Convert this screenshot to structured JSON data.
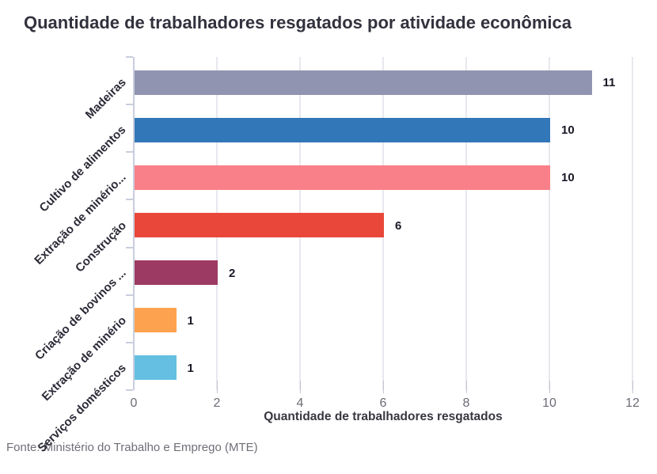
{
  "title": "Quantidade de trabalhadores resgatados por atividade econômica",
  "footer": "Fonte: Ministério do Trabalho e Emprego (MTE)",
  "chart_data": {
    "type": "bar",
    "orientation": "horizontal",
    "title": "Quantidade de trabalhadores resgatados por atividade econômica",
    "xlabel": "Quantidade de trabalhadores resgatados",
    "ylabel": "",
    "xlim": [
      0,
      12
    ],
    "xticks": [
      0,
      2,
      4,
      6,
      8,
      10,
      12
    ],
    "grid": true,
    "legend": false,
    "categories": [
      "Madeiras",
      "Cultivo de alimentos",
      "Extração de minério...",
      "Construção",
      "Criação de bovinos ...",
      "Extração de minério",
      "Serviços domésticos"
    ],
    "values": [
      11,
      10,
      10,
      6,
      2,
      1,
      1
    ],
    "value_labels": [
      "11",
      "10",
      "10",
      "6",
      "2",
      "1",
      "1"
    ],
    "bar_colors": [
      "#9194b0",
      "#3277b8",
      "#f97f88",
      "#e84739",
      "#9d3a63",
      "#fda24e",
      "#65bfe2"
    ]
  },
  "colors": {
    "background": "#ffffff",
    "title_text": "#32323e",
    "axis_line": "#c9cedd",
    "gridline": "#e8e8ee",
    "tick_label": "#6b6b76",
    "category_label": "#2b2b38",
    "value_label": "#191927",
    "xlabel_text": "#373740",
    "footer_text": "#6f6f78"
  }
}
